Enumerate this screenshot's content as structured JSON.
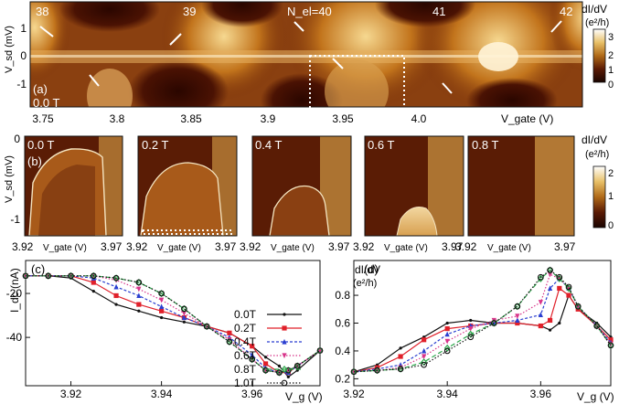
{
  "colorbar": {
    "title": "dI/dV",
    "unit": "(e²/h)",
    "ticks": [
      "3",
      "2",
      "1",
      "0"
    ]
  },
  "colorbar_b": {
    "title": "dI/dV",
    "unit": "(e²/h)",
    "ticks": [
      "2",
      "1",
      "0"
    ]
  },
  "panel_a": {
    "label": "(a)",
    "field": "0.0 T",
    "ylabel": "V_sd (mV)",
    "xlabel": "V_gate (V)",
    "y_ticks": [
      "1",
      "0",
      "-1"
    ],
    "x_ticks": [
      "3.75",
      "3.8",
      "3.85",
      "3.9",
      "3.95",
      "4.0"
    ],
    "electron_numbers": [
      "38",
      "39",
      "N_el=40",
      "41",
      "42"
    ]
  },
  "panel_b": {
    "label": "(b)",
    "ylabel": "V_sd (mV)",
    "y_ticks": [
      "0",
      "-1"
    ],
    "fields": [
      "0.0 T",
      "0.2 T",
      "0.4 T",
      "0.6 T",
      "0.8 T"
    ],
    "x_left": "3.92",
    "x_right": "3.97",
    "xlabel": "V_gate (V)"
  },
  "chart_data": [
    {
      "panel": "(c)",
      "type": "line",
      "xlabel": "V_g (V)",
      "ylabel": "I_dc (nA)",
      "xlim": [
        3.91,
        3.975
      ],
      "ylim": [
        -62,
        -5
      ],
      "x_ticks": [
        "3.92",
        "3.94",
        "3.96"
      ],
      "y_ticks": [
        "-40",
        "-20"
      ],
      "x": [
        3.91,
        3.915,
        3.92,
        3.925,
        3.93,
        3.935,
        3.94,
        3.945,
        3.95,
        3.955,
        3.96,
        3.963,
        3.966,
        3.968,
        3.97,
        3.975
      ],
      "series": [
        {
          "name": "0.0T",
          "color": "#111111",
          "marker": "dot",
          "values": [
            -12,
            -12,
            -13,
            -19,
            -25,
            -28,
            -31,
            -33,
            -35,
            -38,
            -44,
            -49,
            -53,
            -58,
            -55,
            -46
          ]
        },
        {
          "name": "0.2T",
          "color": "#e0202a",
          "marker": "square",
          "values": [
            -12,
            -12,
            -12,
            -15,
            -21,
            -25,
            -28,
            -31,
            -35,
            -38,
            -44,
            -52,
            -56,
            -56,
            -53,
            -46
          ]
        },
        {
          "name": "0.4T",
          "color": "#2a3fd0",
          "marker": "triangle",
          "values": [
            -12,
            -12,
            -12,
            -13,
            -17,
            -21,
            -26,
            -31,
            -35,
            -40,
            -48,
            -54,
            -56,
            -56,
            -53,
            -46
          ]
        },
        {
          "name": "0.6T",
          "color": "#d8348a",
          "marker": "triangle-down",
          "values": [
            -12,
            -12,
            -12,
            -12,
            -14,
            -18,
            -23,
            -29,
            -35,
            -41,
            -50,
            -55,
            -56,
            -55,
            -53,
            -46
          ]
        },
        {
          "name": "0.8T",
          "color": "#2ca64a",
          "marker": "diamond",
          "values": [
            -12,
            -12,
            -12,
            -12,
            -13,
            -15,
            -20,
            -27,
            -35,
            -42,
            -50,
            -55,
            -56,
            -55,
            -53,
            -46
          ]
        },
        {
          "name": "1.0T",
          "color": "#111111",
          "marker": "circle-open",
          "values": [
            -12,
            -12,
            -12,
            -12,
            -13,
            -15,
            -20,
            -27,
            -35,
            -42,
            -50,
            -55,
            -56,
            -55,
            -53,
            -46
          ]
        }
      ]
    },
    {
      "panel": "(d)",
      "type": "line",
      "xlabel": "V_g (V)",
      "ylabel": "dI/dV",
      "ylabel_unit": "(e²/h)",
      "xlim": [
        3.92,
        3.975
      ],
      "ylim": [
        0.15,
        1.05
      ],
      "x_ticks": [
        "3.92",
        "3.94",
        "3.96"
      ],
      "y_ticks": [
        "0.2",
        "0.4",
        "0.6",
        "0.8"
      ],
      "x": [
        3.92,
        3.925,
        3.93,
        3.935,
        3.94,
        3.945,
        3.95,
        3.955,
        3.96,
        3.962,
        3.964,
        3.966,
        3.968,
        3.972,
        3.975
      ],
      "series": [
        {
          "name": "0.0T",
          "color": "#111111",
          "marker": "dot",
          "values": [
            0.25,
            0.3,
            0.42,
            0.5,
            0.6,
            0.62,
            0.6,
            0.6,
            0.58,
            0.55,
            0.6,
            0.8,
            0.7,
            0.6,
            0.5
          ]
        },
        {
          "name": "0.2T",
          "color": "#e0202a",
          "marker": "square",
          "values": [
            0.25,
            0.28,
            0.36,
            0.48,
            0.56,
            0.58,
            0.6,
            0.6,
            0.58,
            0.62,
            0.85,
            0.8,
            0.7,
            0.58,
            0.48
          ]
        },
        {
          "name": "0.4T",
          "color": "#2a3fd0",
          "marker": "triangle",
          "values": [
            0.25,
            0.27,
            0.3,
            0.4,
            0.52,
            0.58,
            0.6,
            0.62,
            0.66,
            0.85,
            0.92,
            0.85,
            0.72,
            0.58,
            0.46
          ]
        },
        {
          "name": "0.6T",
          "color": "#d8348a",
          "marker": "triangle-down",
          "values": [
            0.25,
            0.26,
            0.28,
            0.36,
            0.47,
            0.56,
            0.62,
            0.65,
            0.75,
            0.95,
            0.92,
            0.85,
            0.72,
            0.58,
            0.45
          ]
        },
        {
          "name": "0.8T",
          "color": "#2ca64a",
          "marker": "diamond",
          "values": [
            0.25,
            0.26,
            0.27,
            0.32,
            0.42,
            0.52,
            0.6,
            0.72,
            0.92,
            0.98,
            0.92,
            0.85,
            0.72,
            0.58,
            0.44
          ]
        },
        {
          "name": "1.0T",
          "color": "#111111",
          "marker": "circle-open",
          "values": [
            0.25,
            0.26,
            0.27,
            0.3,
            0.4,
            0.5,
            0.6,
            0.72,
            0.93,
            0.98,
            0.93,
            0.86,
            0.72,
            0.58,
            0.44
          ]
        }
      ]
    }
  ]
}
